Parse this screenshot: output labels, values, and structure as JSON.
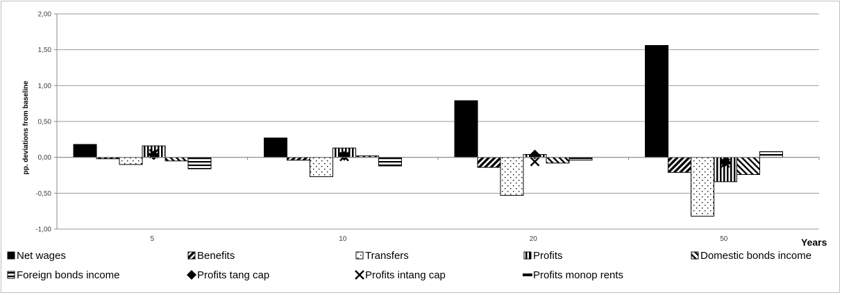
{
  "chart_data": {
    "type": "bar",
    "ylabel": "pp. deviations from baseline",
    "xlabel": "Years",
    "ylim": [
      -1.0,
      2.0
    ],
    "yticks": [
      -1.0,
      -0.5,
      0.0,
      0.5,
      1.0,
      1.5,
      2.0
    ],
    "ytick_labels": [
      "-1,00",
      "-0,50",
      "0,00",
      "0,50",
      "1,00",
      "1,50",
      "2,00"
    ],
    "grid": true,
    "legend_position": "bottom",
    "categories": [
      "5",
      "10",
      "20",
      "50"
    ],
    "series": [
      {
        "name": "Net wages",
        "kind": "bar",
        "pattern": "solid",
        "color": "#000000",
        "values": [
          0.18,
          0.27,
          0.79,
          1.56
        ]
      },
      {
        "name": "Benefits",
        "kind": "bar",
        "pattern": "diagonal-dense",
        "color": "#000000",
        "values": [
          -0.02,
          -0.04,
          -0.14,
          -0.21
        ]
      },
      {
        "name": "Transfers",
        "kind": "bar",
        "pattern": "dots",
        "color": "#000000",
        "values": [
          -0.1,
          -0.27,
          -0.53,
          -0.82
        ]
      },
      {
        "name": "Profits",
        "kind": "bar",
        "pattern": "vertical-stripes",
        "color": "#000000",
        "values": [
          0.16,
          0.13,
          0.04,
          -0.34
        ]
      },
      {
        "name": "Domestic bonds income",
        "kind": "bar",
        "pattern": "diagonal-wide",
        "color": "#000000",
        "values": [
          -0.05,
          0.02,
          -0.08,
          -0.24
        ]
      },
      {
        "name": "Foreign bonds income",
        "kind": "bar",
        "pattern": "horizontal-stripes",
        "color": "#000000",
        "values": [
          -0.16,
          -0.12,
          -0.04,
          0.08
        ]
      },
      {
        "name": "Profits tang cap",
        "kind": "marker",
        "marker": "diamond",
        "color": "#000000",
        "values": [
          0.03,
          0.02,
          0.04,
          -0.06
        ]
      },
      {
        "name": "Profits intang cap",
        "kind": "marker",
        "marker": "x",
        "color": "#000000",
        "values": [
          0.05,
          0.01,
          -0.06,
          -0.08
        ]
      },
      {
        "name": "Profits monop rents",
        "kind": "marker",
        "marker": "dash",
        "color": "#000000",
        "values": [
          0.04,
          0.05,
          0.02,
          -0.08
        ]
      }
    ]
  }
}
